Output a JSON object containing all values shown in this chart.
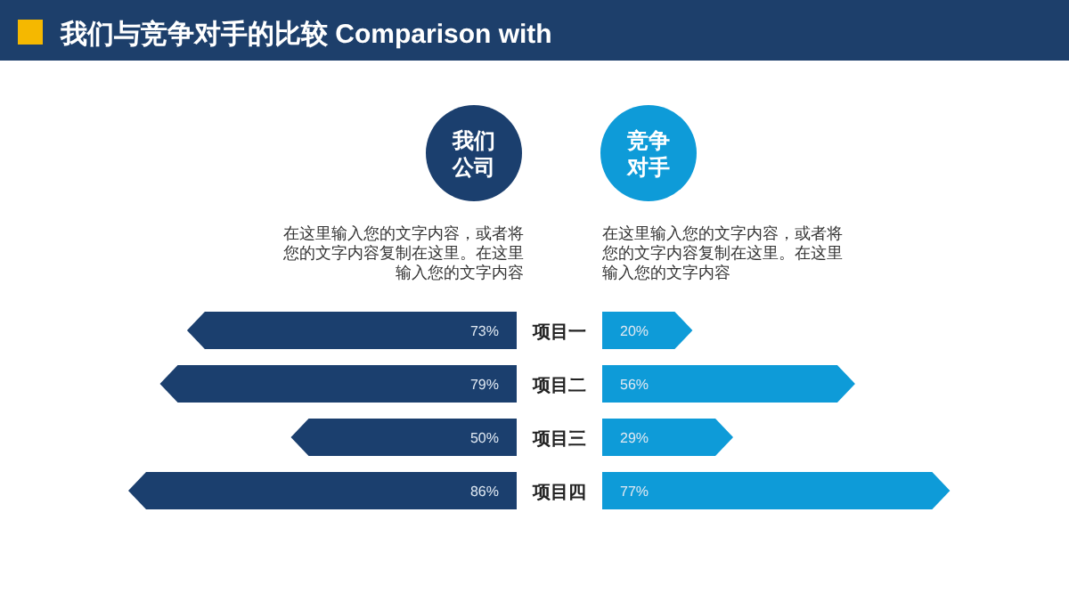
{
  "chart_data": [
    {
      "type": "bar",
      "orientation": "horizontal",
      "title": "我们与竞争对手的比较  Comparison with",
      "categories": [
        "项目一",
        "项目二",
        "项目三",
        "项目四"
      ],
      "series": [
        {
          "name": "我们公司",
          "color": "#1b3f6e",
          "values": [
            73,
            79,
            50,
            86
          ],
          "value_labels": [
            "73%",
            "79%",
            "50%",
            "86%"
          ]
        }
      ],
      "legend": "top",
      "annotations": [
        "在这里输入您的文字内容，或者将您的文字内容复制在这里。在这里输入您的文字内容"
      ]
    },
    {
      "type": "bar",
      "orientation": "horizontal",
      "categories": [
        null,
        null,
        null,
        null
      ],
      "series": [
        {
          "name": "竞争对手",
          "color": "#0e9bd8",
          "values": [
            20,
            56,
            29,
            77
          ],
          "value_labels": [
            "20%",
            "56%",
            "29%",
            "77%"
          ]
        }
      ],
      "legend": "top",
      "annotations": [
        "在这里输入您的文字内容，或者将您的文字内容复制在这里。在这里输入您的文字内容"
      ]
    }
  ]
}
